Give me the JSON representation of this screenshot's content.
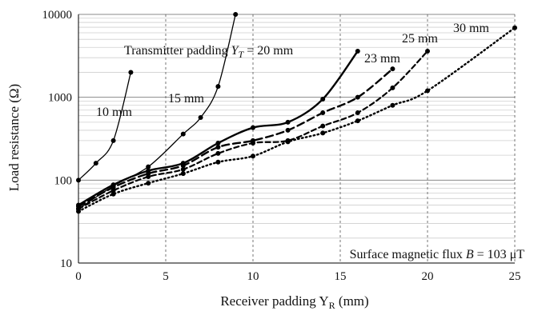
{
  "chart_data": {
    "type": "line",
    "title": "",
    "xlabel": "Receiver padding  Y",
    "xlabel_sub": "R",
    "xlabel_unit": " (mm)",
    "ylabel": "Load resistance (Ω)",
    "xlim": [
      0,
      25
    ],
    "ylim": [
      10,
      10000
    ],
    "yscale": "log",
    "x_ticks": [
      "0",
      "5",
      "10",
      "15",
      "20",
      "25"
    ],
    "y_ticks": [
      "10",
      "100",
      "1000",
      "10000"
    ],
    "grid": "major x dashed, minor and major y",
    "annotations": {
      "transmitter_prefix": "Transmitter padding ",
      "transmitter_var": "Y",
      "transmitter_sub": "T",
      "transmitter_suffix": " = 20 mm",
      "flux_prefix": "Surface magnetic flux ",
      "flux_var": "B",
      "flux_suffix": " = 103 μT"
    },
    "series": [
      {
        "name": "10 mm",
        "style": "solid-thin",
        "x": [
          0,
          1,
          2,
          3
        ],
        "y": [
          100,
          160,
          300,
          2000
        ]
      },
      {
        "name": "15 mm",
        "style": "solid-thin",
        "x": [
          0,
          2,
          4,
          6,
          7,
          8,
          9
        ],
        "y": [
          45,
          85,
          145,
          360,
          570,
          1350,
          10000
        ]
      },
      {
        "name": "",
        "style": "solid-thick",
        "x": [
          0,
          2,
          4,
          6,
          8,
          10,
          12,
          14,
          16
        ],
        "y": [
          50,
          88,
          130,
          160,
          280,
          430,
          500,
          950,
          3600
        ]
      },
      {
        "name": "23 mm",
        "style": "long-dash",
        "x": [
          0,
          2,
          4,
          6,
          8,
          10,
          12,
          14,
          16,
          18
        ],
        "y": [
          48,
          82,
          120,
          150,
          250,
          300,
          400,
          650,
          1000,
          2200
        ]
      },
      {
        "name": "25 mm",
        "style": "short-dash",
        "x": [
          0,
          2,
          4,
          6,
          8,
          10,
          12,
          14,
          16,
          18,
          20
        ],
        "y": [
          45,
          75,
          110,
          135,
          210,
          280,
          300,
          450,
          650,
          1300,
          3600
        ]
      },
      {
        "name": "30 mm",
        "style": "dotted",
        "x": [
          0,
          2,
          4,
          6,
          8,
          10,
          12,
          14,
          16,
          18,
          20,
          25
        ],
        "y": [
          42,
          68,
          92,
          120,
          165,
          195,
          290,
          370,
          520,
          800,
          1200,
          6900
        ]
      }
    ]
  }
}
